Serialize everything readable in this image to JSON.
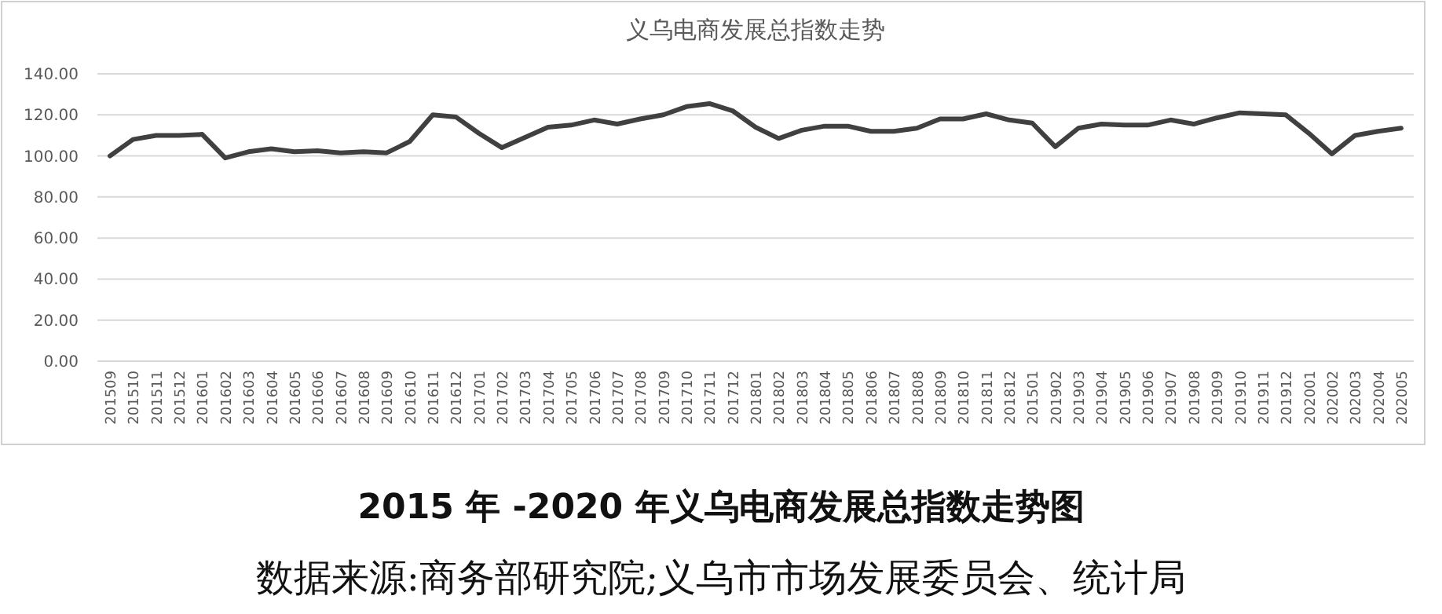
{
  "chart_data": {
    "type": "line",
    "title": "义乌电商发展总指数走势",
    "categories": [
      "201509",
      "201510",
      "201511",
      "201512",
      "201601",
      "201602",
      "201603",
      "201604",
      "201605",
      "201606",
      "201607",
      "201608",
      "201609",
      "201610",
      "201611",
      "201612",
      "201701",
      "201702",
      "201703",
      "201704",
      "201705",
      "201706",
      "201707",
      "201708",
      "201709",
      "201710",
      "201711",
      "201712",
      "201801",
      "201802",
      "201803",
      "201804",
      "201805",
      "201806",
      "201807",
      "201808",
      "201809",
      "201810",
      "201811",
      "201812",
      "201501",
      "201902",
      "201903",
      "201904",
      "201905",
      "201906",
      "201907",
      "201908",
      "201909",
      "201910",
      "201911",
      "201912",
      "202001",
      "202002",
      "202003",
      "202004",
      "202005"
    ],
    "series": [
      {
        "color": "#404040",
        "values": [
          100,
          108,
          110,
          110,
          110.5,
          99,
          102,
          103.5,
          102,
          102.5,
          101.5,
          102,
          101.5,
          107,
          120,
          119,
          111,
          104,
          109,
          114,
          115,
          117.5,
          115.5,
          118,
          120,
          124,
          125.5,
          122,
          114,
          108.5,
          112.5,
          114.5,
          114.5,
          112,
          112,
          113.5,
          118,
          118,
          120.5,
          117.5,
          116,
          104.5,
          113.5,
          115.5,
          115,
          115,
          117.5,
          115.5,
          118.5,
          121,
          120.5,
          120,
          111,
          101,
          110,
          112,
          113.5
        ]
      }
    ],
    "ylim": [
      0,
      140
    ],
    "yticks": [
      {
        "value": 0,
        "label": "0.00"
      },
      {
        "value": 20,
        "label": "20.00"
      },
      {
        "value": 40,
        "label": "40.00"
      },
      {
        "value": 60,
        "label": "60.00"
      },
      {
        "value": 80,
        "label": "80.00"
      },
      {
        "value": 100,
        "label": "100.00"
      },
      {
        "value": 120,
        "label": "120.00"
      },
      {
        "value": 140,
        "label": "140.00"
      }
    ],
    "grid": "y",
    "marker": "none",
    "line_style": "solid",
    "annotations": [
      "2015 年 -2020 年义乌电商发展总指数走势图",
      "数据来源:商务部研究院;义乌市市场发展委员会、统计局"
    ]
  }
}
